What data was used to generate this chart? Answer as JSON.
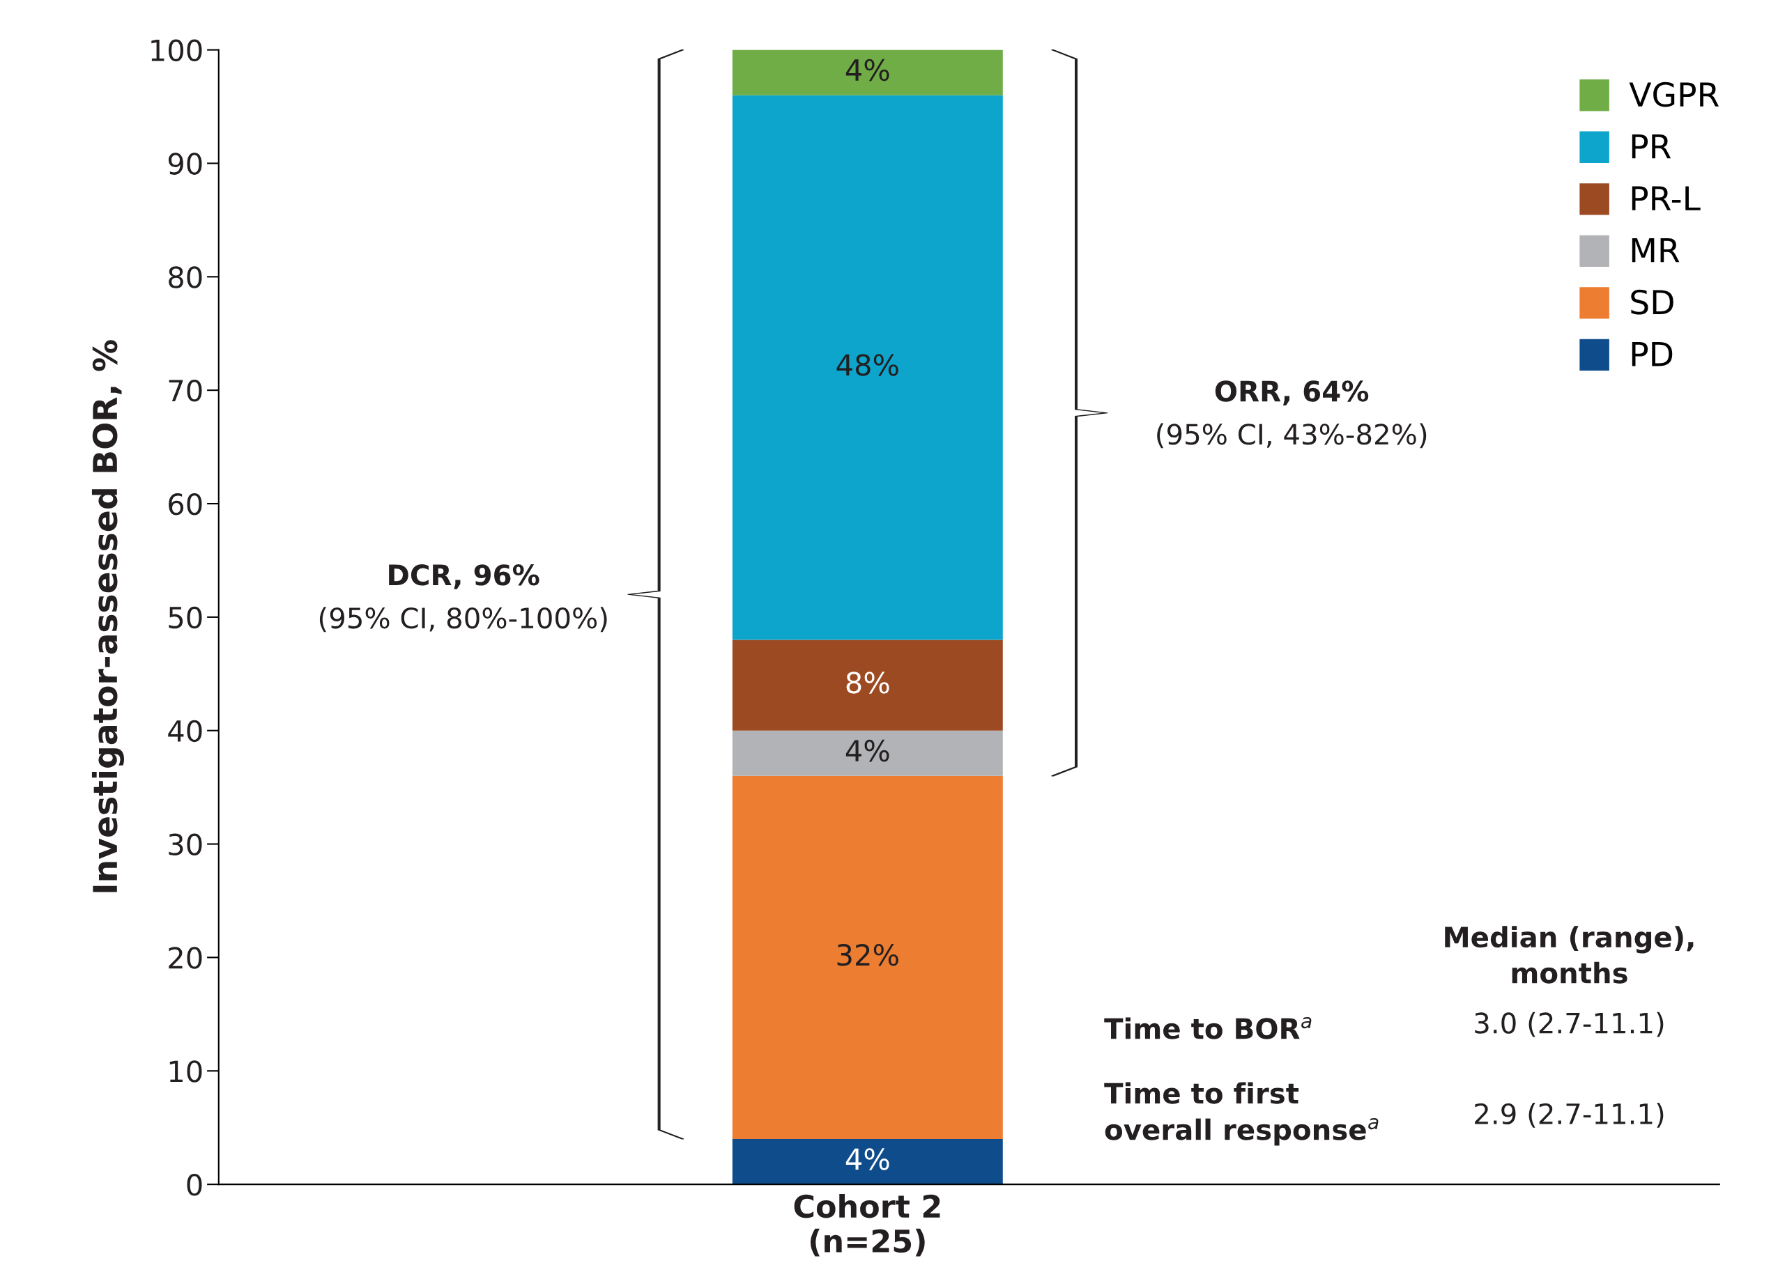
{
  "chart_data": {
    "type": "bar",
    "stacked": true,
    "ylabel": "Investigator-assessed BOR, %",
    "categories": [
      "Cohort 2\n(n=25)"
    ],
    "series": [
      {
        "name": "PD",
        "color": "#0e4c8c",
        "values": [
          4
        ],
        "value_labels": [
          "4%"
        ]
      },
      {
        "name": "SD",
        "color": "#ed7d31",
        "values": [
          32
        ],
        "value_labels": [
          "32%"
        ]
      },
      {
        "name": "MR",
        "color": "#b1b3b6",
        "values": [
          4
        ],
        "value_labels": [
          "4%"
        ]
      },
      {
        "name": "PR-L",
        "color": "#9c4a22",
        "values": [
          8
        ],
        "value_labels": [
          "8%"
        ]
      },
      {
        "name": "PR",
        "color": "#0ea5cc",
        "values": [
          48
        ],
        "value_labels": [
          "48%"
        ]
      },
      {
        "name": "VGPR",
        "color": "#70ad47",
        "values": [
          4
        ],
        "value_labels": [
          "4%"
        ]
      }
    ],
    "ylim": [
      0,
      100
    ],
    "yticks": [
      0,
      10,
      20,
      30,
      40,
      50,
      60,
      70,
      80,
      90,
      100
    ],
    "grid": false,
    "legend": "top right",
    "annotations": [
      "DCR, 96%",
      "(95% CI, 80%-100%)",
      "ORR, 64%",
      "(95% CI, 43%-82%)",
      "Median (range),\nmonths",
      "Time to BOR$^{a}$",
      "3.0 (2.7-11.1)",
      "Time to first\noverall response$^{a}$",
      "2.9 (2.7-11.1)"
    ]
  }
}
